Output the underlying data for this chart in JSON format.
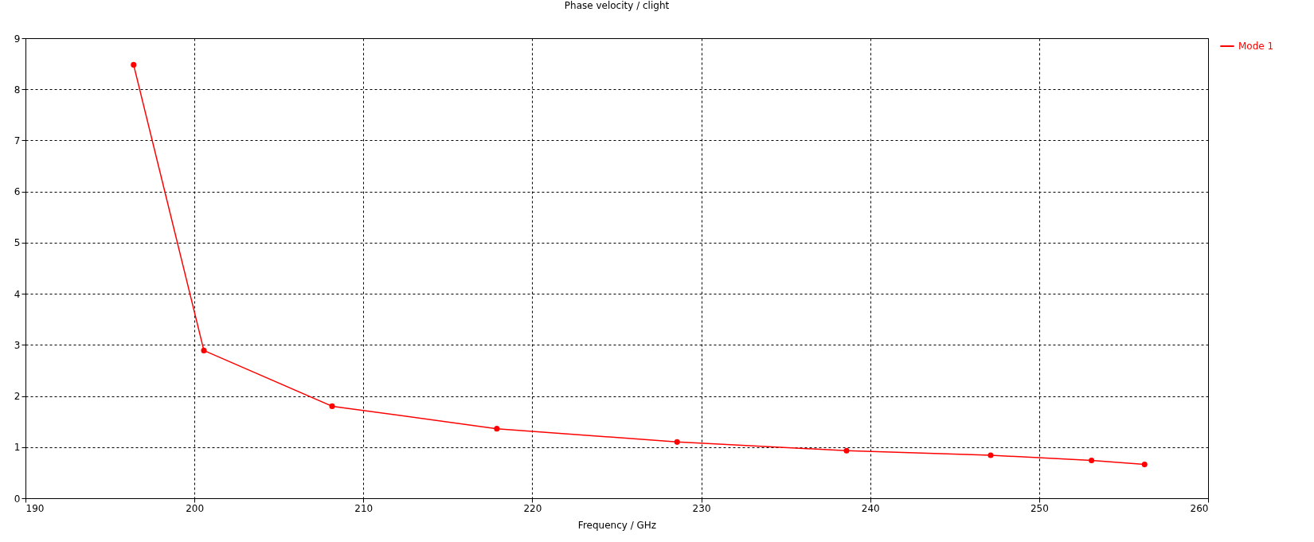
{
  "chart_data": {
    "type": "line",
    "title": "Phase velocity / clight",
    "xlabel": "Frequency / GHz",
    "x": [
      196.4,
      200.56,
      208.15,
      217.9,
      228.57,
      238.6,
      247.13,
      253.1,
      256.24
    ],
    "series": [
      {
        "name": "Mode 1",
        "color": "#ff0000",
        "values": [
          8.48,
          2.89,
          1.8,
          1.36,
          1.1,
          0.93,
          0.84,
          0.74,
          0.66
        ]
      }
    ],
    "xlim": [
      190,
      260
    ],
    "xticks": [
      190,
      200,
      210,
      220,
      230,
      240,
      250,
      260
    ],
    "ylim": [
      0,
      9
    ],
    "yticks": [
      0,
      1,
      2,
      3,
      4,
      5,
      6,
      7,
      8,
      9
    ],
    "grid": true,
    "legend": "top right",
    "marker": "circle",
    "line_style": "solid"
  }
}
